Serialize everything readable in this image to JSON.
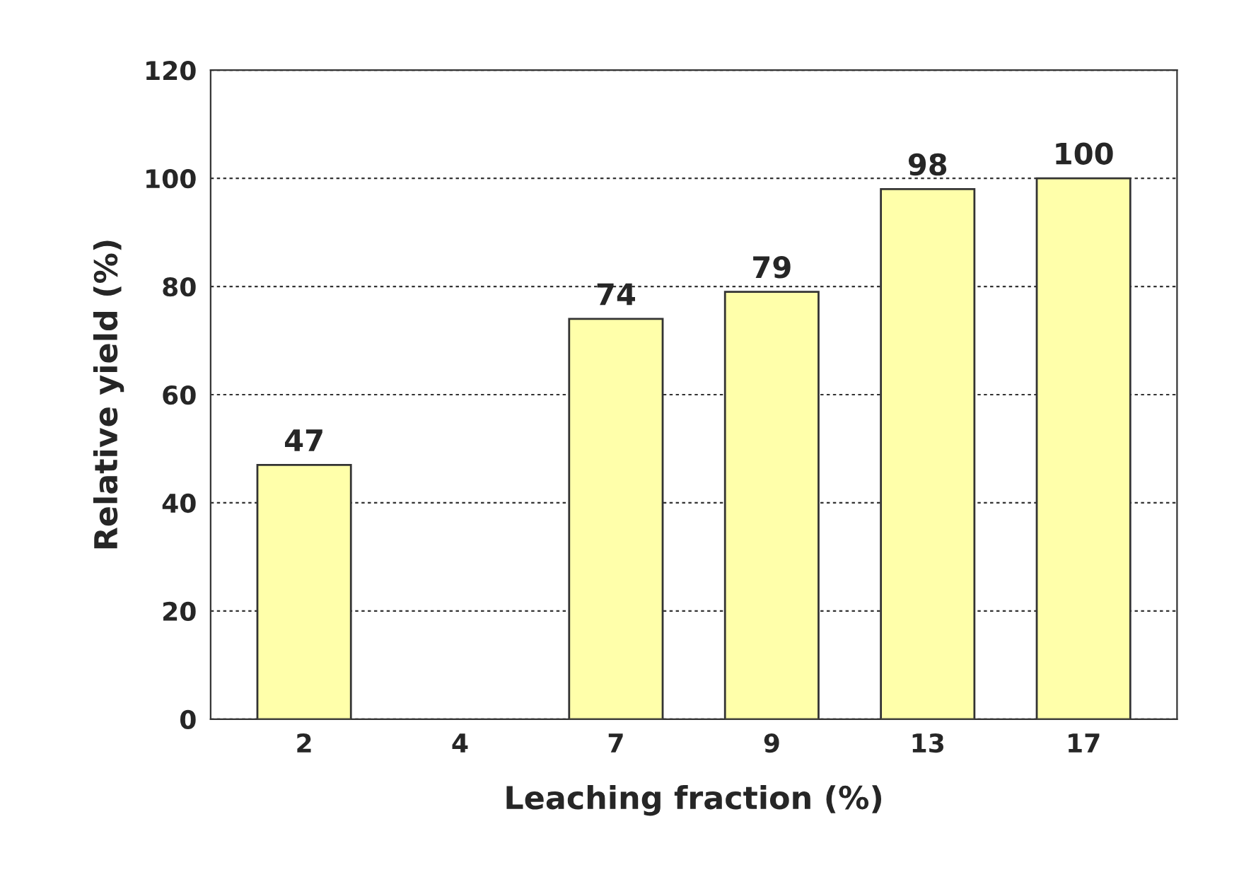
{
  "chart_data": {
    "type": "bar",
    "xlabel": "Leaching fraction (%)",
    "ylabel": "Relative yield (%)",
    "categories": [
      "2",
      "4",
      "7",
      "9",
      "13",
      "17"
    ],
    "values": [
      47,
      null,
      74,
      79,
      98,
      100
    ],
    "color": "#ffffaa",
    "ylim": [
      0,
      120
    ],
    "yticks": [
      0,
      20,
      40,
      60,
      80,
      100,
      120
    ],
    "grid": "y",
    "data_labels": true
  }
}
